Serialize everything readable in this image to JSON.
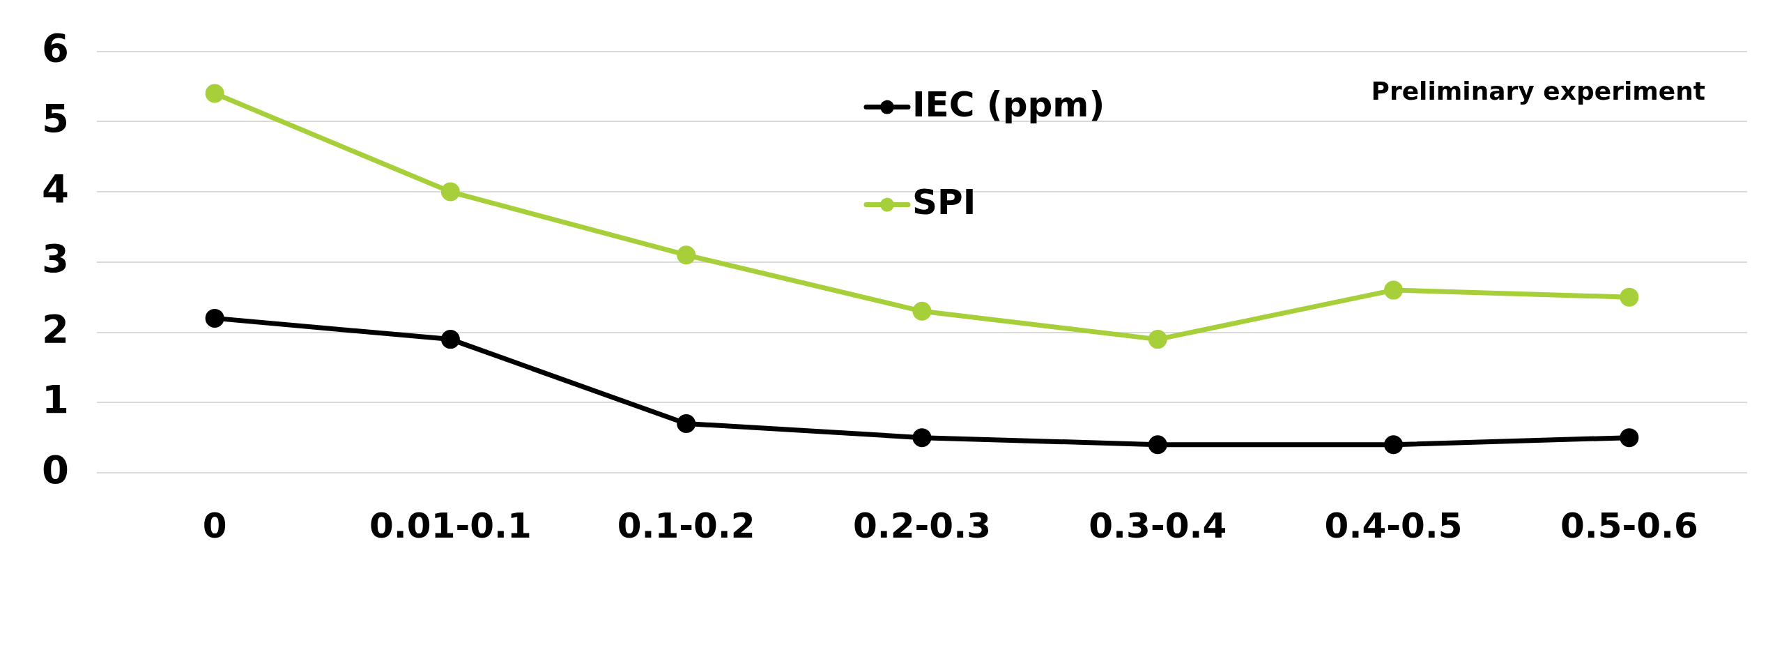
{
  "chart_data": {
    "type": "line",
    "categories": [
      "0",
      "0.01-0.1",
      "0.1-0.2",
      "0.2-0.3",
      "0.3-0.4",
      "0.4-0.5",
      "0.5-0.6"
    ],
    "series": [
      {
        "name": "IEC (ppm)",
        "color": "#000000",
        "values": [
          2.2,
          1.9,
          0.7,
          0.5,
          0.4,
          0.4,
          0.5
        ]
      },
      {
        "name": "SPI",
        "color": "#a6cf3a",
        "values": [
          5.4,
          4.0,
          3.1,
          2.3,
          1.9,
          2.6,
          2.5
        ]
      }
    ],
    "ylim": [
      0,
      6
    ],
    "yticks": [
      0,
      1,
      2,
      3,
      4,
      5,
      6
    ],
    "grid": "y",
    "legend": "top",
    "marker": "circle",
    "line_style": "solid",
    "annotations": [
      "Preliminary experiment"
    ]
  }
}
